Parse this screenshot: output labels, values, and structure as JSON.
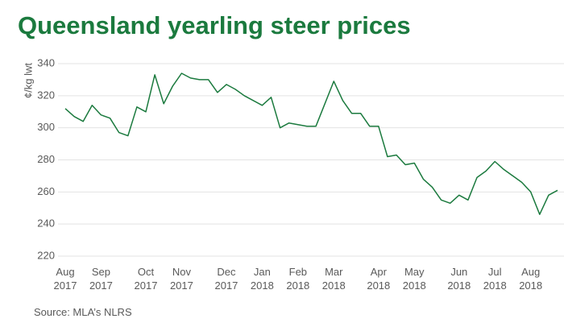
{
  "chart_data": {
    "type": "line",
    "title": "Queensland yearling steer prices",
    "y_label": "¢/kg lwt",
    "source": "Source: MLA’s NLRS",
    "categories": [
      "Aug 2017",
      null,
      null,
      null,
      "Sep 2017",
      null,
      null,
      null,
      null,
      "Oct 2017",
      null,
      null,
      null,
      "Nov 2017",
      null,
      null,
      null,
      null,
      "Dec 2017",
      null,
      null,
      null,
      "Jan 2018",
      null,
      null,
      null,
      "Feb 2018",
      null,
      null,
      null,
      "Mar 2018",
      null,
      null,
      null,
      null,
      "Apr 2018",
      null,
      null,
      null,
      "May 2018",
      null,
      null,
      null,
      null,
      "Jun 2018",
      null,
      null,
      null,
      "Jul 2018",
      null,
      null,
      null,
      "Aug 2018",
      null,
      null,
      null
    ],
    "series": [
      {
        "name": "Price",
        "color": "#1b7a3e",
        "values": [
          312,
          307,
          304,
          314,
          308,
          306,
          297,
          295,
          313,
          310,
          333,
          315,
          326,
          334,
          331,
          330,
          330,
          322,
          327,
          324,
          320,
          317,
          314,
          319,
          300,
          303,
          302,
          301,
          301,
          315,
          329,
          317,
          309,
          309,
          301,
          301,
          282,
          283,
          277,
          278,
          268,
          263,
          255,
          253,
          258,
          255,
          269,
          273,
          279,
          274,
          270,
          266,
          260,
          246,
          258,
          261
        ]
      }
    ],
    "ylim": [
      220,
      340
    ],
    "yticks": [
      220,
      240,
      260,
      280,
      300,
      320,
      340
    ],
    "grid": true
  }
}
